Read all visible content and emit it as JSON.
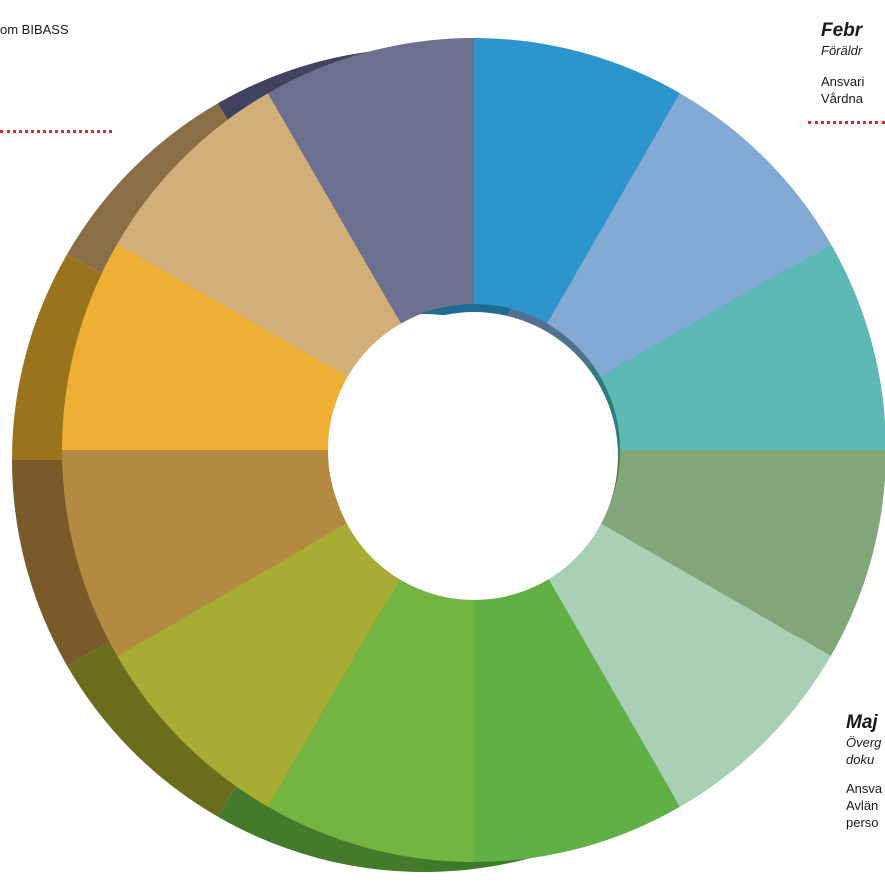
{
  "segments": [
    {
      "label": "",
      "color": "#2E94CC",
      "side": "#1F6B94"
    },
    {
      "label": "",
      "color": "#82AAD4",
      "side": "#53708F"
    },
    {
      "label": "",
      "color": "#5DB9B5",
      "side": "#2E7D7A"
    },
    {
      "label": "",
      "color": "#80A67A",
      "side": "#52693D"
    },
    {
      "label": "",
      "color": "#A9CFB5",
      "side": "#6E8C78"
    },
    {
      "label": "",
      "color": "#60B045",
      "side": "#3A7A29"
    },
    {
      "label": "",
      "color": "#74B541",
      "side": "#437A2B"
    },
    {
      "label": "",
      "color": "#A7AC32",
      "side": "#6A6D1C"
    },
    {
      "label": "",
      "color": "#B48942",
      "side": "#7A5A2B"
    },
    {
      "label": "",
      "color": "#EDB035",
      "side": "#9A731D"
    },
    {
      "label": "",
      "color": "#D2AE78",
      "side": "#8A6E47"
    },
    {
      "label": "",
      "color": "#6C708F",
      "side": "#3F4360"
    }
  ],
  "notes": {
    "top_left": {
      "text": "om BIBASS"
    },
    "top_right": {
      "heading": "Febr",
      "subtitle": "Föräldr",
      "line1": "Ansvari",
      "line2": "Vårdna"
    },
    "bottom_right": {
      "heading": "Maj",
      "subtitle1": "Överg",
      "subtitle2": "doku",
      "line1": "Ansva",
      "line2": "Avlän",
      "line3": "perso"
    }
  },
  "colors": {
    "dotted_line": "#d42a2a"
  }
}
